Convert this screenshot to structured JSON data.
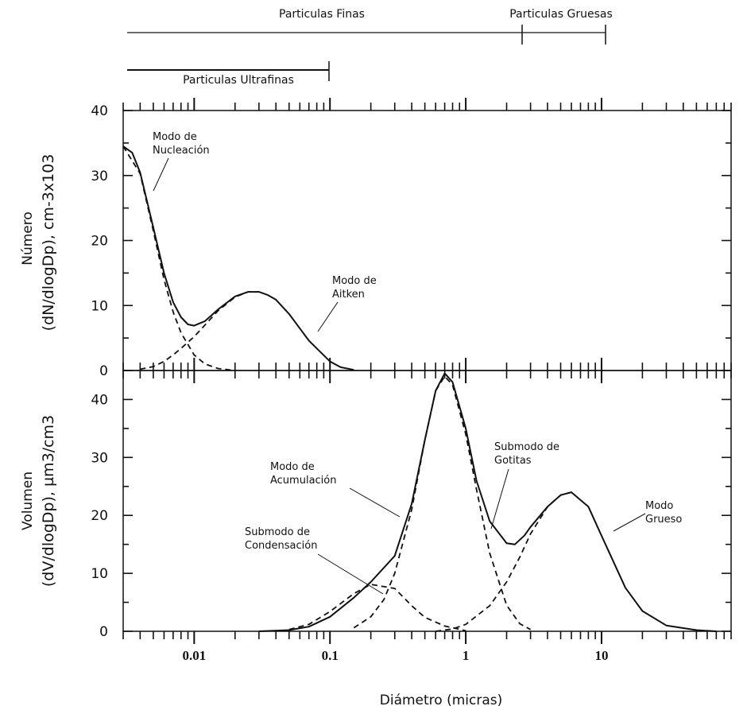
{
  "size_ranges": {
    "fine": "Particulas Finas",
    "coarse": "Particulas Gruesas",
    "ultrafine": "Particulas Ultrafinas",
    "fine_span": [
      0.003,
      2.5
    ],
    "coarse_span": [
      2.5,
      10
    ],
    "ultrafine_span": [
      0.003,
      0.1
    ]
  },
  "chart_data": [
    {
      "type": "line",
      "xscale": "log",
      "xlim": [
        0.003,
        90
      ],
      "ylim": [
        0,
        40
      ],
      "yticks": [
        0,
        10,
        20,
        30,
        40
      ],
      "ylabel_line1": "Número",
      "ylabel_line2": "(dN/dlogDp), cm-3x103",
      "series": [
        {
          "style": "solid",
          "x": [
            0.003,
            0.0035,
            0.004,
            0.005,
            0.006,
            0.007,
            0.008,
            0.009,
            0.01,
            0.012,
            0.015,
            0.02,
            0.025,
            0.03,
            0.035,
            0.04,
            0.05,
            0.07,
            0.1,
            0.12,
            0.15
          ],
          "y": [
            34.5,
            33.5,
            30.5,
            22,
            15,
            10.5,
            8.2,
            7.1,
            6.9,
            7.6,
            9.4,
            11.4,
            12.1,
            12.1,
            11.6,
            10.9,
            8.7,
            4.6,
            1.4,
            0.5,
            0.1
          ]
        },
        {
          "style": "dashed",
          "x": [
            0.003,
            0.004,
            0.005,
            0.006,
            0.007,
            0.008,
            0.01,
            0.012,
            0.015,
            0.02
          ],
          "y": [
            34.5,
            30.3,
            21.5,
            14,
            9,
            5.8,
            2.4,
            1.0,
            0.3,
            0
          ]
        },
        {
          "style": "dashed",
          "x": [
            0.004,
            0.005,
            0.006,
            0.007,
            0.008,
            0.01,
            0.012,
            0.015,
            0.02,
            0.025,
            0.03
          ],
          "y": [
            0.2,
            0.6,
            1.4,
            2.4,
            3.4,
            5.2,
            7.0,
            9.2,
            11.3,
            12.1,
            12.1
          ]
        }
      ],
      "annotations": [
        {
          "line1": "Modo de",
          "line2": "Nucleación"
        },
        {
          "line1": "Modo de",
          "line2": "Aitken"
        }
      ]
    },
    {
      "type": "line",
      "xscale": "log",
      "xlim": [
        0.003,
        90
      ],
      "ylim": [
        0,
        45
      ],
      "yticks": [
        0,
        10,
        20,
        30,
        40
      ],
      "xtick_labels": [
        "0.01",
        "0.1",
        "1",
        "10"
      ],
      "xticks": [
        0.01,
        0.1,
        1,
        10
      ],
      "xlabel": "Diámetro (micras)",
      "ylabel_line1": "Volumen",
      "ylabel_line2": "(dV/dlogDp), µm3/cm3",
      "series": [
        {
          "style": "solid",
          "x": [
            0.03,
            0.05,
            0.07,
            0.1,
            0.15,
            0.2,
            0.3,
            0.4,
            0.5,
            0.6,
            0.7,
            0.8,
            1.0,
            1.2,
            1.5,
            2.0,
            2.3,
            2.7,
            3.0,
            4.0,
            5.0,
            6.0,
            8.0,
            10,
            15,
            20,
            30,
            50,
            70
          ],
          "y": [
            0,
            0.2,
            0.8,
            2.5,
            5.8,
            8.5,
            13.0,
            22.0,
            33.0,
            41.5,
            44.5,
            43.0,
            35.0,
            26.0,
            19.0,
            15.2,
            15.0,
            16.5,
            18.0,
            21.5,
            23.5,
            24.0,
            21.5,
            16.5,
            7.5,
            3.5,
            1.0,
            0.2,
            0
          ]
        },
        {
          "style": "dashed",
          "x": [
            0.05,
            0.07,
            0.1,
            0.15,
            0.2,
            0.3,
            0.4,
            0.5,
            0.7,
            1.0
          ],
          "y": [
            0.3,
            1.2,
            3.4,
            6.5,
            8.1,
            7.4,
            4.4,
            2.4,
            0.9,
            0.1
          ]
        },
        {
          "style": "dashed",
          "x": [
            0.15,
            0.2,
            0.25,
            0.3,
            0.4,
            0.5,
            0.6,
            0.7,
            0.8,
            1.0,
            1.2,
            1.5,
            2.0,
            2.5,
            3.0
          ],
          "y": [
            0.6,
            2.5,
            5.5,
            10.0,
            21.0,
            33.0,
            41.5,
            44.0,
            42.5,
            34.0,
            24.5,
            13.5,
            4.5,
            1.3,
            0.3
          ]
        },
        {
          "style": "dashed",
          "x": [
            0.6,
            0.8,
            1.0,
            1.5,
            2.0,
            2.5,
            3.0,
            4.0,
            5.0,
            6.0
          ],
          "y": [
            0,
            0.4,
            1.2,
            4.4,
            8.5,
            12.8,
            16.8,
            21.5,
            23.5,
            24.0
          ]
        }
      ],
      "annotations": [
        {
          "line1": "Modo de",
          "line2": "Acumulación"
        },
        {
          "line1": "Submodo de",
          "line2": "Gotitas"
        },
        {
          "line1": "Modo",
          "line2": "Grueso"
        },
        {
          "line1": "Submodo de",
          "line2": "Condensación"
        }
      ]
    }
  ]
}
